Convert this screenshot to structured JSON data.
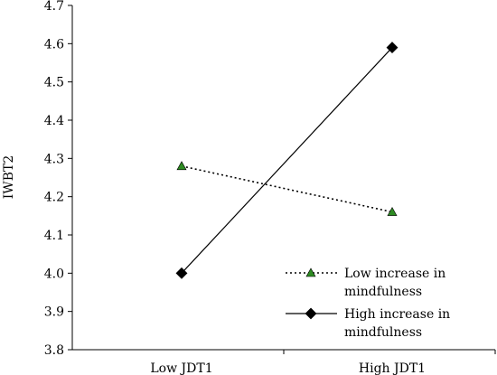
{
  "chart_data": {
    "type": "line",
    "title": "",
    "xlabel": "",
    "ylabel": "IWBT2",
    "categories": [
      "Low JDT1",
      "High JDT1"
    ],
    "ylim": [
      3.8,
      4.7
    ],
    "yticks": [
      "3.8",
      "3.9",
      "4.0",
      "4.1",
      "4.2",
      "4.3",
      "4.4",
      "4.5",
      "4.6",
      "4.7"
    ],
    "grid": false,
    "legend_position": "bottom-right",
    "series": [
      {
        "name_lines": [
          "Low increase in",
          "mindfulness"
        ],
        "values": [
          4.28,
          4.16
        ],
        "line_style": "dotted",
        "marker": "triangle",
        "marker_color": "#2e8b22",
        "line_color": "#000000"
      },
      {
        "name_lines": [
          "High increase in",
          "mindfulness"
        ],
        "values": [
          4.0,
          4.59
        ],
        "line_style": "solid",
        "marker": "diamond",
        "marker_color": "#000000",
        "line_color": "#000000"
      }
    ]
  }
}
